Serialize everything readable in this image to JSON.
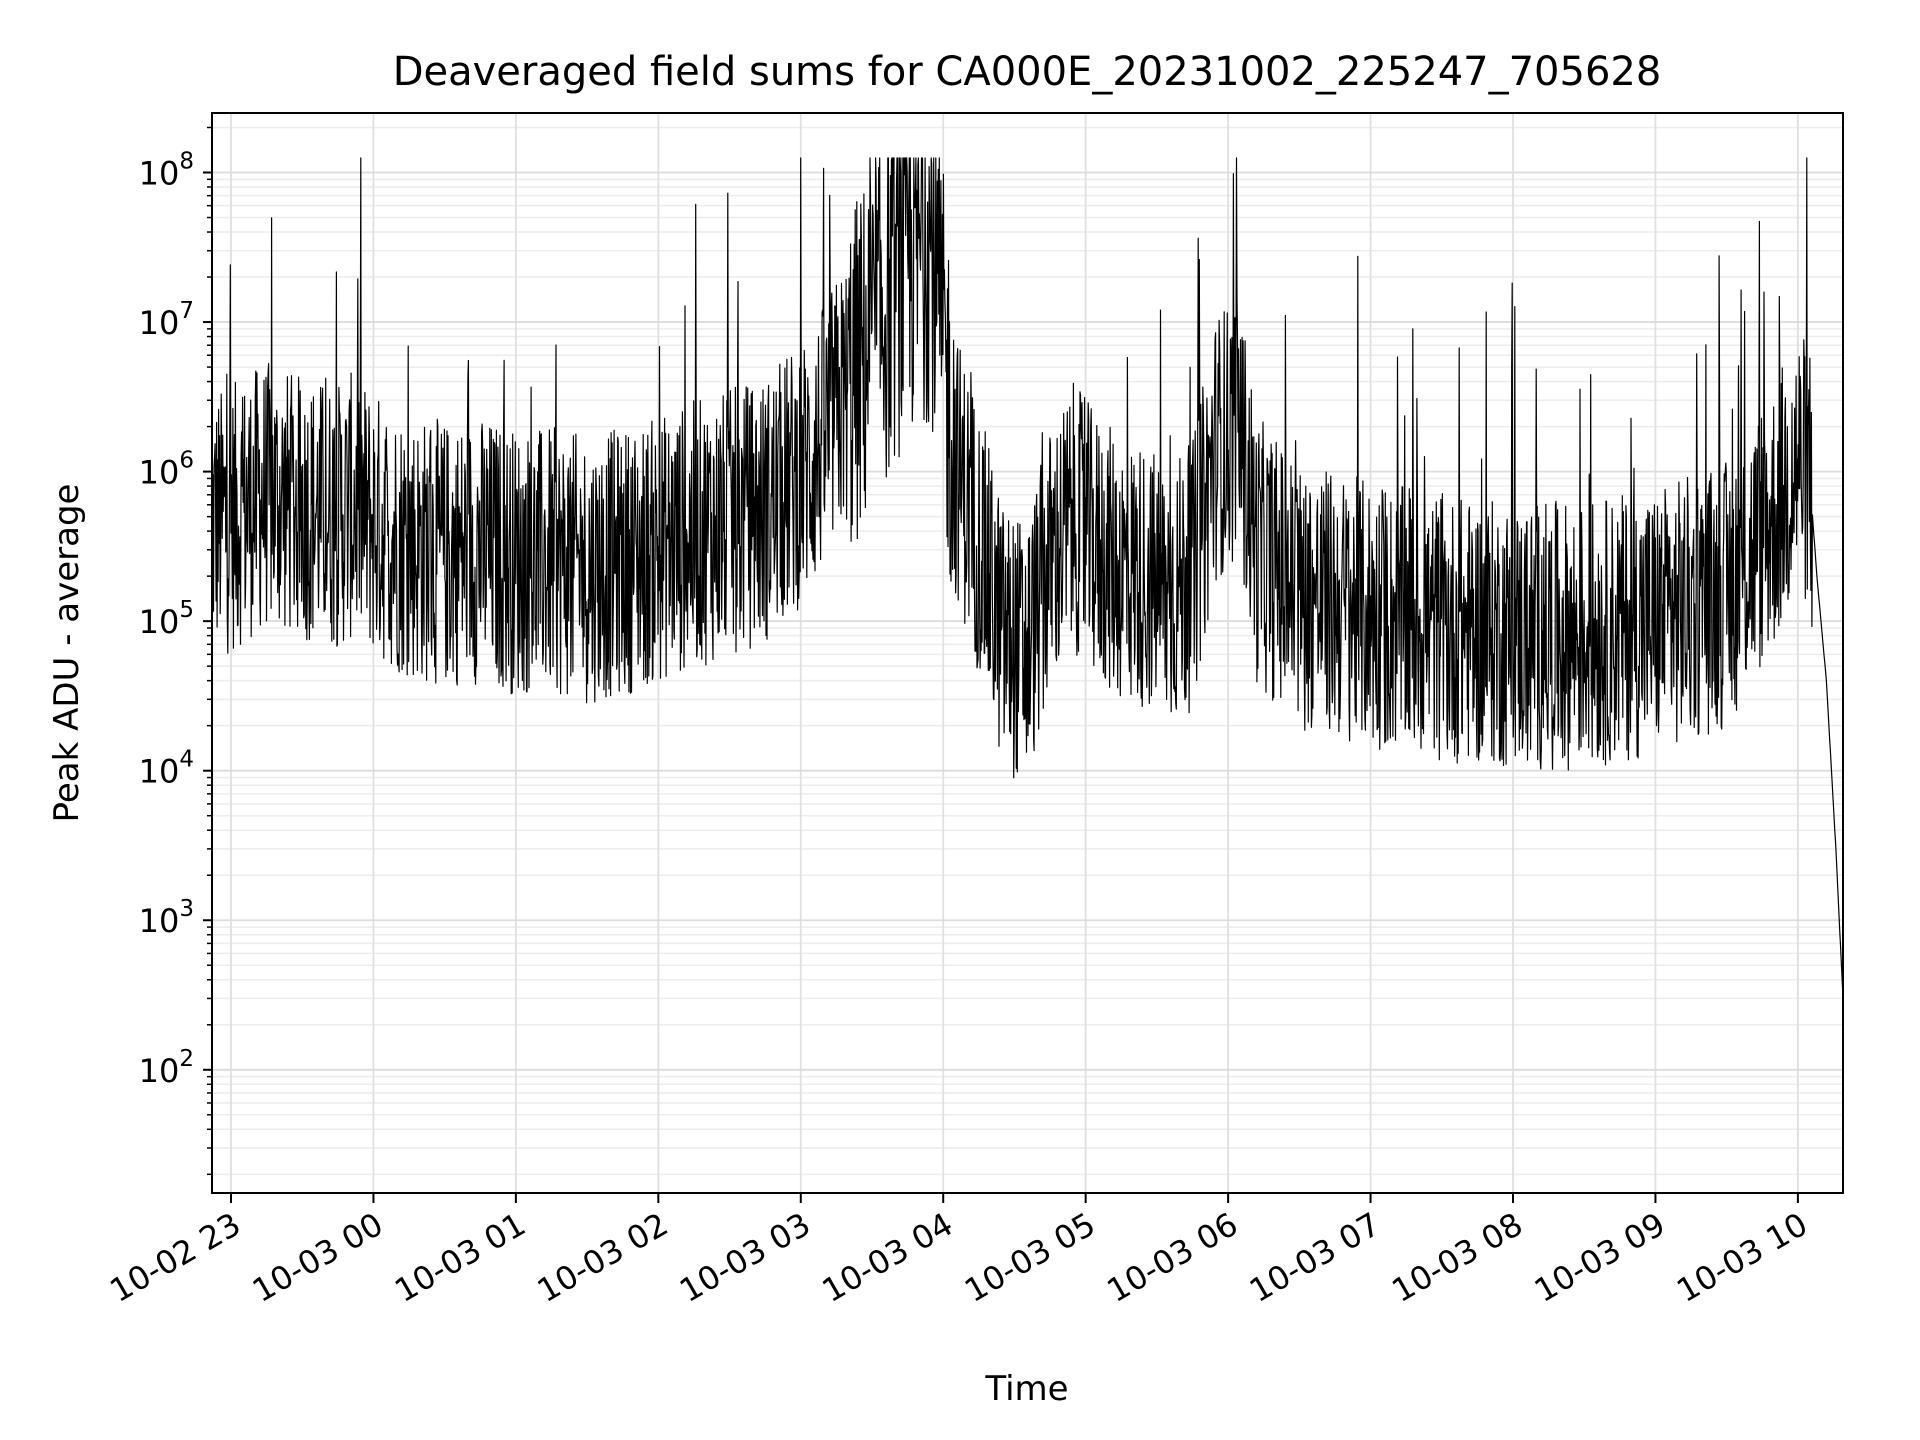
{
  "chart_data": {
    "type": "line",
    "title": "Deaveraged field sums for CA000E_20231002_225247_705628",
    "xlabel": "Time",
    "ylabel": "Peak ADU - average",
    "yscale": "log",
    "xlim": [
      "2023-10-02 22:52",
      "2023-10-03 10:19"
    ],
    "ylim": [
      15,
      250000000
    ],
    "grid": true,
    "x_ticks": [
      "10-02 23",
      "10-03 00",
      "10-03 01",
      "10-03 02",
      "10-03 03",
      "10-03 04",
      "10-03 05",
      "10-03 06",
      "10-03 07",
      "10-03 08",
      "10-03 09",
      "10-03 10"
    ],
    "y_ticks": [
      {
        "base": "10",
        "exp": "2"
      },
      {
        "base": "10",
        "exp": "3"
      },
      {
        "base": "10",
        "exp": "4"
      },
      {
        "base": "10",
        "exp": "5"
      },
      {
        "base": "10",
        "exp": "6"
      },
      {
        "base": "10",
        "exp": "7"
      },
      {
        "base": "10",
        "exp": "8"
      }
    ],
    "series": [
      {
        "color": "#000000",
        "x": [
          "2023-10-02 22:52",
          "2023-10-02 23:00",
          "2023-10-02 23:08",
          "2023-10-02 23:15",
          "2023-10-02 23:25",
          "2023-10-02 23:35",
          "2023-10-02 23:45",
          "2023-10-02 23:52",
          "2023-10-03 00:00",
          "2023-10-03 00:10",
          "2023-10-03 00:20",
          "2023-10-03 00:30",
          "2023-10-03 00:45",
          "2023-10-03 01:00",
          "2023-10-03 01:15",
          "2023-10-03 01:30",
          "2023-10-03 01:45",
          "2023-10-03 02:00",
          "2023-10-03 02:15",
          "2023-10-03 02:30",
          "2023-10-03 02:45",
          "2023-10-03 02:55",
          "2023-10-03 03:05",
          "2023-10-03 03:15",
          "2023-10-03 03:25",
          "2023-10-03 03:35",
          "2023-10-03 03:45",
          "2023-10-03 03:55",
          "2023-10-03 04:05",
          "2023-10-03 04:15",
          "2023-10-03 04:25",
          "2023-10-03 04:35",
          "2023-10-03 04:45",
          "2023-10-03 04:55",
          "2023-10-03 05:05",
          "2023-10-03 05:15",
          "2023-10-03 05:25",
          "2023-10-03 05:35",
          "2023-10-03 05:45",
          "2023-10-03 05:55",
          "2023-10-03 06:05",
          "2023-10-03 06:12",
          "2023-10-03 06:30",
          "2023-10-03 07:00",
          "2023-10-03 07:30",
          "2023-10-03 08:00",
          "2023-10-03 08:30",
          "2023-10-03 09:00",
          "2023-10-03 09:30",
          "2023-10-03 09:50",
          "2023-10-03 10:00",
          "2023-10-03 10:05",
          "2023-10-03 10:08",
          "2023-10-03 10:12",
          "2023-10-03 10:16",
          "2023-10-03 10:19"
        ],
        "y": [
          450000,
          480000,
          600000,
          700000,
          600000,
          550000,
          500000,
          600000,
          450000,
          350000,
          300000,
          280000,
          300000,
          250000,
          250000,
          220000,
          250000,
          300000,
          380000,
          450000,
          550000,
          800000,
          1200000,
          2500000,
          5000000,
          12000000,
          25000000,
          35000000,
          1200000,
          350000,
          80000,
          60000,
          250000,
          500000,
          300000,
          220000,
          200000,
          150000,
          200000,
          1500000,
          2000000,
          300000,
          150000,
          110000,
          90000,
          80000,
          80000,
          100000,
          150000,
          500000,
          1200000,
          900000,
          200000,
          40000,
          3000,
          300
        ]
      }
    ]
  }
}
